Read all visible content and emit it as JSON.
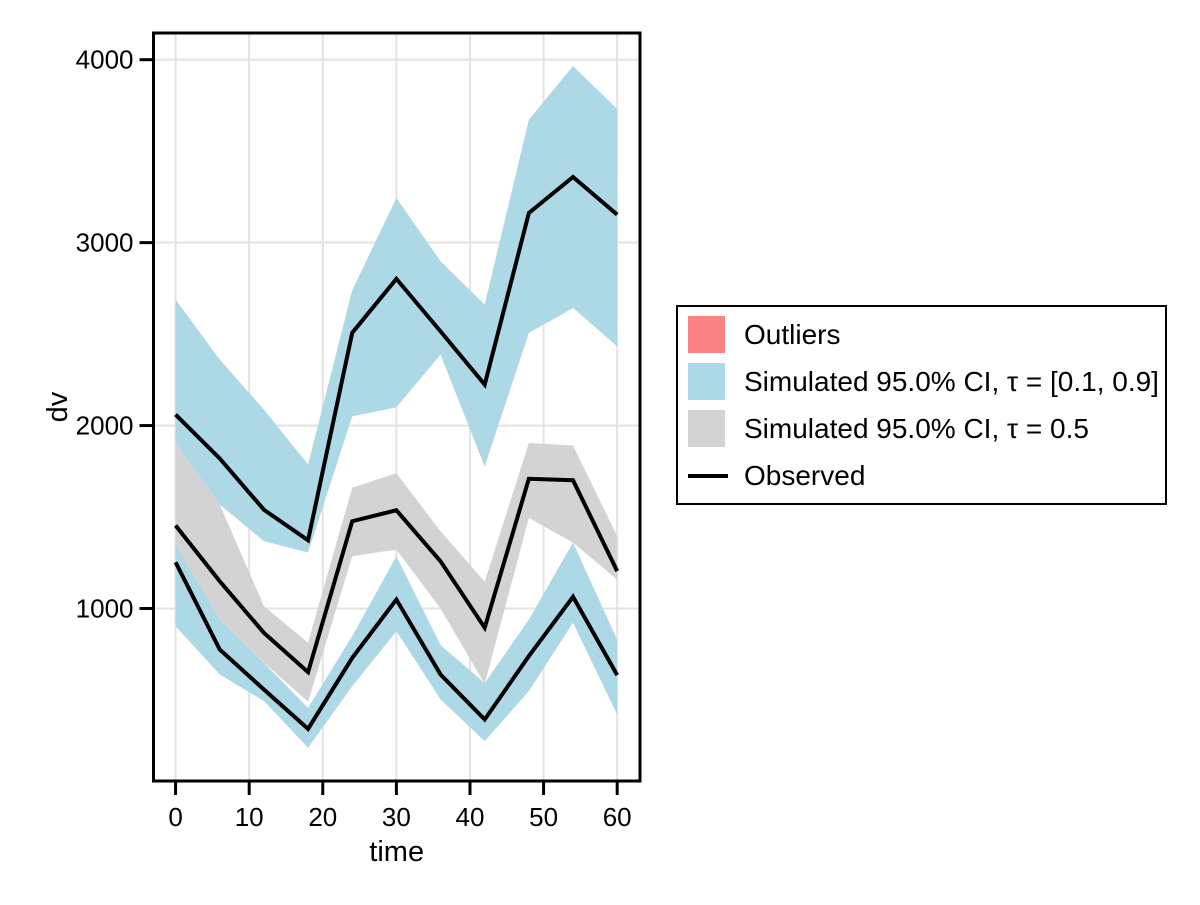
{
  "figure": {
    "background": "#FFFFFF",
    "frame_color": "#000000",
    "grid_color": "#E3E3E3",
    "observed_color": "#000000",
    "ci_band_color": "#ADD8E6",
    "median_band_color": "#D3D3D3",
    "outlier_color": "#FA8282"
  },
  "legend": {
    "items": [
      {
        "label": "Outliers",
        "type": "swatch",
        "color": "#FA8282"
      },
      {
        "label": "Simulated 95.0% CI, τ = [0.1, 0.9]",
        "type": "swatch",
        "color": "#ADD8E6"
      },
      {
        "label": "Simulated 95.0% CI, τ = 0.5",
        "type": "swatch",
        "color": "#D3D3D3"
      },
      {
        "label": "Observed",
        "type": "line",
        "color": "#000000"
      }
    ]
  },
  "chart_data": {
    "type": "line",
    "title": "",
    "xlabel": "time",
    "ylabel": "dv",
    "xlim": [
      -3.0,
      63.1
    ],
    "ylim": [
      57,
      4146
    ],
    "xticks": [
      0,
      10,
      20,
      30,
      40,
      50,
      60
    ],
    "yticks": [
      1000,
      2000,
      3000,
      4000
    ],
    "grid": true,
    "legend_position": "right",
    "grid_color": "#E3E3E3",
    "x": [
      0,
      6,
      12,
      18,
      24,
      30,
      36,
      42,
      48,
      54,
      60
    ],
    "bands": [
      {
        "name": "Simulated 95.0% CI, τ = 0.5",
        "color": "#D3D3D3",
        "hi": [
          1911,
          1568,
          1013,
          813,
          1660,
          1740,
          1422,
          1146,
          1905,
          1891,
          1395
        ],
        "lo": [
          1350,
          940,
          705,
          490,
          1286,
          1322,
          1000,
          588,
          1495,
          1360,
          1158
        ]
      },
      {
        "name": "Simulated 95.0% CI, τ = [0.1, 0.9] — upper band",
        "color": "#ADD8E6",
        "hi": [
          2689,
          2361,
          2087,
          1787,
          2740,
          3244,
          2898,
          2661,
          3672,
          3965,
          3731
        ],
        "lo": [
          1911,
          1568,
          1368,
          1306,
          2050,
          2100,
          2388,
          1777,
          2506,
          2643,
          2433
        ]
      },
      {
        "name": "Simulated 95.0% CI, τ = [0.1, 0.9] — lower band",
        "color": "#ADD8E6",
        "hi": [
          1350,
          940,
          703,
          457,
          849,
          1285,
          800,
          592,
          940,
          1360,
          830
        ],
        "lo": [
          903,
          639,
          494,
          239,
          575,
          876,
          503,
          275,
          548,
          922,
          420
        ]
      }
    ],
    "series": [
      {
        "name": "Observed — upper quantile",
        "color": "#000000",
        "values": [
          2060,
          1820,
          1540,
          1373,
          2507,
          2802,
          2515,
          2224,
          3162,
          3359,
          3153
        ]
      },
      {
        "name": "Observed — median",
        "color": "#000000",
        "values": [
          1454,
          1149,
          867,
          652,
          1477,
          1537,
          1258,
          895,
          1709,
          1701,
          1204
        ]
      },
      {
        "name": "Observed — lower quantile",
        "color": "#000000",
        "values": [
          1253,
          776,
          557,
          342,
          730,
          1049,
          639,
          393,
          740,
          1064,
          636
        ]
      }
    ]
  }
}
